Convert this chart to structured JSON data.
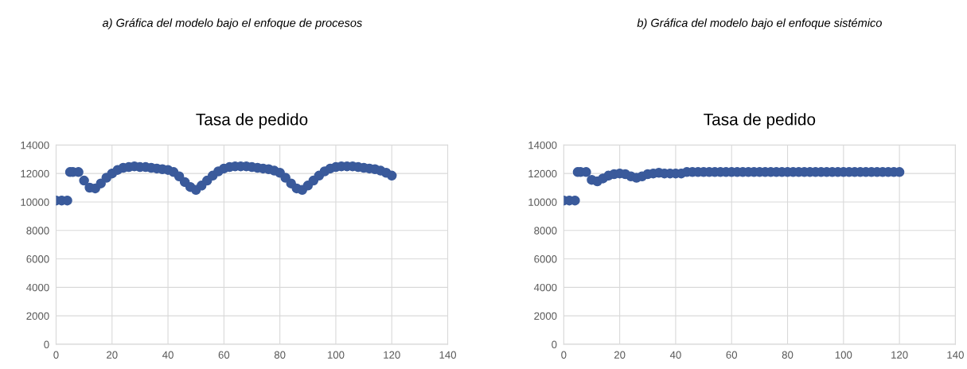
{
  "chart_data": [
    {
      "type": "scatter",
      "title": "Tasa de pedido",
      "annotations": [
        "a) Gráfica del modelo bajo el enfoque de procesos"
      ],
      "marker": "circle",
      "grid": true,
      "xlim": [
        0,
        140
      ],
      "xticks": [
        0,
        20,
        40,
        60,
        80,
        100,
        120,
        140
      ],
      "ylim": [
        0,
        14000
      ],
      "yticks": [
        0,
        2000,
        4000,
        6000,
        8000,
        10000,
        12000,
        14000
      ],
      "series": [
        {
          "color": "#3a5a9b",
          "x": [
            0,
            2,
            4,
            5,
            6,
            8,
            10,
            12,
            14,
            16,
            18,
            20,
            22,
            24,
            26,
            28,
            30,
            32,
            34,
            36,
            38,
            40,
            42,
            44,
            46,
            48,
            50,
            52,
            54,
            56,
            58,
            60,
            62,
            64,
            66,
            68,
            70,
            72,
            74,
            76,
            78,
            80,
            82,
            84,
            86,
            88,
            90,
            92,
            94,
            96,
            98,
            100,
            102,
            104,
            106,
            108,
            110,
            112,
            114,
            116,
            118,
            120
          ],
          "values": [
            10100,
            10100,
            10100,
            12100,
            12100,
            12100,
            11500,
            11000,
            10950,
            11300,
            11700,
            12000,
            12250,
            12400,
            12450,
            12500,
            12450,
            12450,
            12400,
            12350,
            12300,
            12250,
            12100,
            11800,
            11400,
            11050,
            10850,
            11150,
            11500,
            11850,
            12150,
            12350,
            12450,
            12500,
            12500,
            12500,
            12450,
            12400,
            12350,
            12300,
            12200,
            12050,
            11700,
            11300,
            10950,
            10850,
            11150,
            11500,
            11850,
            12150,
            12350,
            12450,
            12500,
            12500,
            12500,
            12450,
            12400,
            12350,
            12300,
            12200,
            12050,
            11850
          ]
        }
      ]
    },
    {
      "type": "scatter",
      "title": "Tasa de pedido",
      "annotations": [
        "b) Gráfica del modelo bajo el enfoque sistémico"
      ],
      "marker": "circle",
      "grid": true,
      "xlim": [
        0,
        140
      ],
      "xticks": [
        0,
        20,
        40,
        60,
        80,
        100,
        120,
        140
      ],
      "ylim": [
        0,
        14000
      ],
      "yticks": [
        0,
        2000,
        4000,
        6000,
        8000,
        10000,
        12000,
        14000
      ],
      "series": [
        {
          "color": "#3a5a9b",
          "x": [
            0,
            2,
            4,
            5,
            6,
            8,
            10,
            12,
            14,
            16,
            18,
            20,
            22,
            24,
            26,
            28,
            30,
            32,
            34,
            36,
            38,
            40,
            42,
            44,
            46,
            48,
            50,
            52,
            54,
            56,
            58,
            60,
            62,
            64,
            66,
            68,
            70,
            72,
            74,
            76,
            78,
            80,
            82,
            84,
            86,
            88,
            90,
            92,
            94,
            96,
            98,
            100,
            102,
            104,
            106,
            108,
            110,
            112,
            114,
            116,
            118,
            120
          ],
          "values": [
            10100,
            10100,
            10100,
            12100,
            12100,
            12100,
            11550,
            11450,
            11650,
            11850,
            11950,
            12000,
            11950,
            11800,
            11700,
            11800,
            11950,
            12000,
            12050,
            12000,
            12000,
            12000,
            12000,
            12100,
            12100,
            12100,
            12100,
            12100,
            12100,
            12100,
            12100,
            12100,
            12100,
            12100,
            12100,
            12100,
            12100,
            12100,
            12100,
            12100,
            12100,
            12100,
            12100,
            12100,
            12100,
            12100,
            12100,
            12100,
            12100,
            12100,
            12100,
            12100,
            12100,
            12100,
            12100,
            12100,
            12100,
            12100,
            12100,
            12100,
            12100,
            12100
          ]
        }
      ]
    }
  ]
}
